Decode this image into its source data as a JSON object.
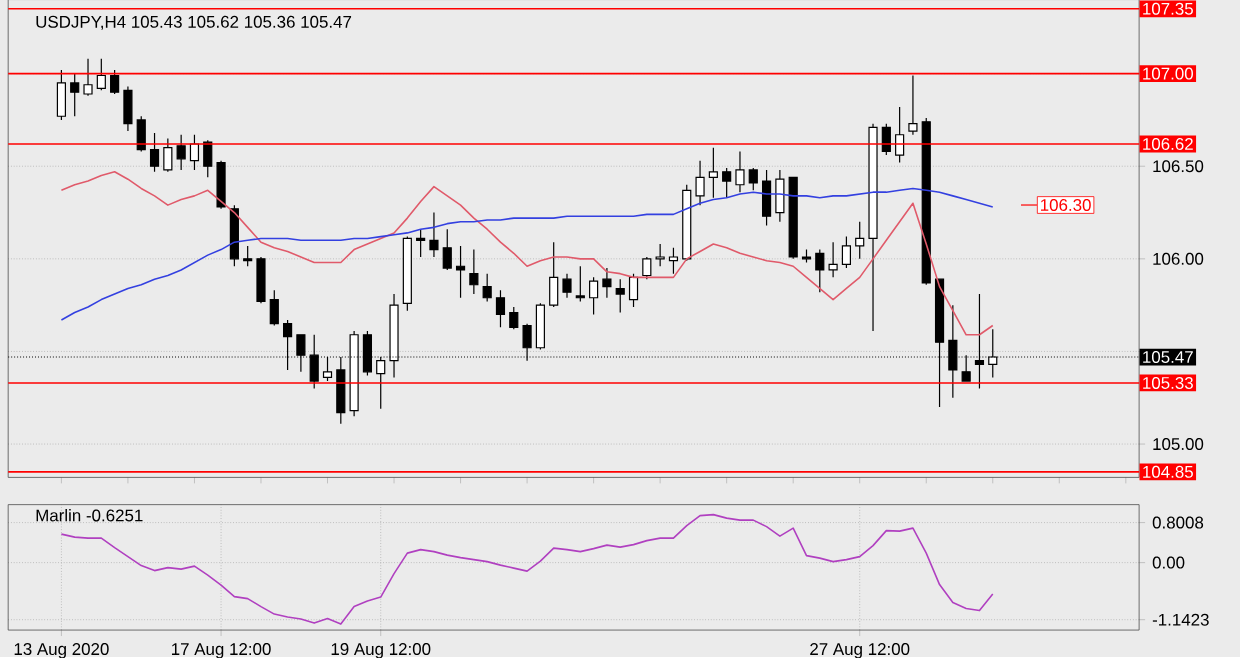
{
  "chart_data": [
    {
      "type": "candlestick",
      "title": "USDJPY,H4 105.43 105.62 105.36 105.47",
      "categories": [
        null,
        null,
        null,
        null,
        null,
        null,
        null,
        null,
        null,
        null,
        null,
        null,
        null,
        null,
        null,
        null,
        null,
        null,
        null,
        null,
        null,
        null,
        null,
        null,
        null,
        null,
        null,
        null,
        null,
        null,
        null,
        null,
        null,
        null,
        null,
        null,
        null,
        null,
        null,
        null,
        null,
        null,
        null,
        null,
        null,
        null,
        null,
        null,
        null,
        null,
        null,
        null,
        null,
        null,
        null,
        null,
        null,
        null,
        null,
        null,
        null,
        null,
        null,
        null,
        null,
        null,
        null,
        null,
        null,
        null,
        null
      ],
      "ohlc": [
        [
          106.77,
          107.02,
          106.75,
          106.95
        ],
        [
          106.95,
          107.0,
          106.77,
          106.9
        ],
        [
          106.89,
          107.08,
          106.88,
          106.94
        ],
        [
          106.92,
          107.08,
          106.91,
          106.99
        ],
        [
          106.99,
          107.02,
          106.89,
          106.9
        ],
        [
          106.91,
          106.93,
          106.69,
          106.73
        ],
        [
          106.75,
          106.77,
          106.58,
          106.59
        ],
        [
          106.59,
          106.68,
          106.47,
          106.5
        ],
        [
          106.48,
          106.65,
          106.47,
          106.6
        ],
        [
          106.61,
          106.67,
          106.48,
          106.54
        ],
        [
          106.53,
          106.67,
          106.48,
          106.62
        ],
        [
          106.63,
          106.64,
          106.44,
          106.5
        ],
        [
          106.52,
          106.53,
          106.27,
          106.28
        ],
        [
          106.27,
          106.29,
          105.96,
          106.0
        ],
        [
          106.0,
          106.07,
          105.96,
          105.99
        ],
        [
          106.0,
          106.01,
          105.76,
          105.77
        ],
        [
          105.78,
          105.83,
          105.64,
          105.65
        ],
        [
          105.65,
          105.67,
          105.4,
          105.58
        ],
        [
          105.59,
          105.59,
          105.39,
          105.48
        ],
        [
          105.48,
          105.59,
          105.3,
          105.34
        ],
        [
          105.36,
          105.47,
          105.34,
          105.39
        ],
        [
          105.4,
          105.47,
          105.11,
          105.17
        ],
        [
          105.18,
          105.61,
          105.15,
          105.59
        ],
        [
          105.59,
          105.61,
          105.37,
          105.39
        ],
        [
          105.38,
          105.47,
          105.19,
          105.45
        ],
        [
          105.45,
          105.81,
          105.36,
          105.75
        ],
        [
          105.76,
          106.12,
          105.72,
          106.11
        ],
        [
          106.11,
          106.16,
          106.01,
          106.1
        ],
        [
          106.1,
          106.25,
          106.01,
          106.05
        ],
        [
          106.06,
          106.16,
          105.94,
          105.95
        ],
        [
          105.96,
          106.07,
          105.79,
          105.94
        ],
        [
          105.92,
          106.05,
          105.81,
          105.86
        ],
        [
          105.85,
          105.92,
          105.77,
          105.79
        ],
        [
          105.79,
          105.83,
          105.63,
          105.7
        ],
        [
          105.71,
          105.74,
          105.62,
          105.63
        ],
        [
          105.64,
          105.65,
          105.45,
          105.52
        ],
        [
          105.52,
          105.76,
          105.51,
          105.75
        ],
        [
          105.75,
          106.09,
          105.74,
          105.9
        ],
        [
          105.89,
          105.92,
          105.79,
          105.82
        ],
        [
          105.8,
          105.96,
          105.77,
          105.79
        ],
        [
          105.79,
          105.9,
          105.7,
          105.88
        ],
        [
          105.89,
          105.95,
          105.79,
          105.85
        ],
        [
          105.84,
          105.89,
          105.71,
          105.81
        ],
        [
          105.78,
          105.92,
          105.74,
          105.9
        ],
        [
          105.91,
          106.01,
          105.89,
          106.0
        ],
        [
          106.0,
          106.08,
          105.96,
          106.01
        ],
        [
          105.99,
          106.06,
          105.92,
          106.01
        ],
        [
          106.0,
          106.4,
          105.99,
          106.37
        ],
        [
          106.34,
          106.53,
          106.29,
          106.44
        ],
        [
          106.44,
          106.6,
          106.33,
          106.47
        ],
        [
          106.47,
          106.49,
          106.33,
          106.42
        ],
        [
          106.4,
          106.58,
          106.36,
          106.48
        ],
        [
          106.48,
          106.49,
          106.37,
          106.41
        ],
        [
          106.42,
          106.48,
          106.18,
          106.23
        ],
        [
          106.25,
          106.48,
          106.2,
          106.43
        ],
        [
          106.44,
          106.44,
          106.0,
          106.01
        ],
        [
          106.01,
          106.05,
          105.98,
          106.0
        ],
        [
          106.03,
          106.05,
          105.82,
          105.94
        ],
        [
          105.94,
          106.09,
          105.9,
          105.97
        ],
        [
          105.97,
          106.12,
          105.95,
          106.07
        ],
        [
          106.07,
          106.2,
          106.0,
          106.11
        ],
        [
          106.11,
          106.73,
          105.61,
          106.71
        ],
        [
          106.71,
          106.73,
          106.56,
          106.58
        ],
        [
          106.56,
          106.82,
          106.52,
          106.67
        ],
        [
          106.69,
          106.99,
          106.67,
          106.73
        ],
        [
          106.74,
          106.76,
          105.86,
          105.87
        ],
        [
          105.89,
          105.89,
          105.2,
          105.55
        ],
        [
          105.56,
          105.75,
          105.25,
          105.4
        ],
        [
          105.39,
          105.48,
          105.34,
          105.34
        ],
        [
          105.45,
          105.81,
          105.3,
          105.43
        ],
        [
          105.43,
          105.62,
          105.36,
          105.47
        ]
      ],
      "series": [
        {
          "type": "line",
          "color": "#e05a6a",
          "values": [
            106.37,
            106.4,
            106.42,
            106.45,
            106.47,
            106.43,
            106.38,
            106.34,
            106.29,
            106.32,
            106.34,
            106.37,
            106.31,
            106.25,
            106.17,
            106.09,
            106.06,
            106.04,
            106.01,
            105.98,
            105.98,
            105.98,
            106.05,
            106.08,
            106.11,
            106.14,
            106.22,
            106.31,
            106.39,
            106.34,
            106.29,
            106.22,
            106.16,
            106.09,
            106.03,
            105.96,
            105.99,
            106.01,
            106.01,
            106.0,
            106.0,
            105.93,
            105.92,
            105.9,
            105.9,
            105.9,
            105.9,
            106.0,
            106.04,
            106.08,
            106.06,
            106.03,
            106.01,
            105.99,
            105.98,
            105.96,
            105.9,
            105.84,
            105.78,
            105.84,
            105.9,
            106.0,
            106.1,
            106.2,
            106.3,
            106.08,
            105.85,
            105.72,
            105.59,
            105.59,
            105.64
          ]
        },
        {
          "type": "line",
          "color": "#3340e0",
          "values": [
            105.67,
            105.71,
            105.74,
            105.78,
            105.81,
            105.84,
            105.86,
            105.89,
            105.91,
            105.94,
            105.98,
            106.02,
            106.05,
            106.09,
            106.1,
            106.11,
            106.11,
            106.11,
            106.1,
            106.1,
            106.1,
            106.1,
            106.11,
            106.11,
            106.12,
            106.13,
            106.14,
            106.16,
            106.17,
            106.19,
            106.2,
            106.2,
            106.21,
            106.21,
            106.22,
            106.22,
            106.22,
            106.22,
            106.23,
            106.23,
            106.23,
            106.23,
            106.23,
            106.23,
            106.24,
            106.24,
            106.24,
            106.27,
            106.3,
            106.32,
            106.33,
            106.35,
            106.36,
            106.35,
            106.35,
            106.34,
            106.34,
            106.33,
            106.34,
            106.34,
            106.35,
            106.36,
            106.36,
            106.37,
            106.38,
            106.37,
            106.36,
            106.34,
            106.32,
            106.3,
            106.28
          ]
        }
      ],
      "ylim": [
        104.82,
        107.4
      ],
      "yticks": [
        {
          "value": 105,
          "label": "105.00"
        },
        {
          "value": 105.5,
          "label": null
        },
        {
          "value": 106,
          "label": "106.00"
        },
        {
          "value": 106.5,
          "label": "106.50"
        },
        {
          "value": 107,
          "label": null
        }
      ],
      "grid": "y",
      "ref_lines": [
        {
          "axis": "y",
          "value": 107.35,
          "label": "107.35",
          "color": "#ff0000"
        },
        {
          "axis": "y",
          "value": 107.0,
          "label": "107.00",
          "color": "#ff0000"
        },
        {
          "axis": "y",
          "value": 106.62,
          "label": "106.62",
          "color": "#ff0000"
        },
        {
          "axis": "y",
          "value": 105.47,
          "label": "105.47",
          "color": "#000000",
          "line_style": "dotted"
        },
        {
          "axis": "y",
          "value": 105.33,
          "label": "105.33",
          "color": "#ff0000"
        },
        {
          "axis": "y",
          "value": 104.85,
          "label": "104.85",
          "color": "#ff0000"
        }
      ],
      "annotations": [
        "106.30"
      ]
    },
    {
      "type": "line",
      "title": "Marlin -0.6251",
      "categories": [
        "13 Aug 2020",
        null,
        null,
        null,
        null,
        null,
        null,
        null,
        null,
        null,
        null,
        null,
        "17 Aug 12:00",
        null,
        null,
        null,
        null,
        null,
        null,
        null,
        null,
        null,
        null,
        null,
        "19 Aug 12:00",
        null,
        null,
        null,
        null,
        null,
        null,
        null,
        null,
        null,
        null,
        null,
        null,
        null,
        null,
        null,
        null,
        null,
        null,
        null,
        null,
        null,
        null,
        null,
        null,
        null,
        null,
        null,
        null,
        null,
        null,
        null,
        null,
        null,
        null,
        null,
        "27 Aug 12:00",
        null,
        null,
        null,
        null,
        null,
        null,
        null,
        null,
        null,
        null
      ],
      "series": [
        {
          "color": "#b040c0",
          "values": [
            0.57,
            0.51,
            0.49,
            0.49,
            0.3,
            0.12,
            -0.06,
            -0.16,
            -0.1,
            -0.13,
            -0.07,
            -0.25,
            -0.45,
            -0.68,
            -0.72,
            -0.88,
            -1.03,
            -1.09,
            -1.13,
            -1.21,
            -1.12,
            -1.23,
            -0.88,
            -0.77,
            -0.69,
            -0.22,
            0.19,
            0.26,
            0.22,
            0.15,
            0.1,
            0.06,
            0.02,
            -0.05,
            -0.11,
            -0.17,
            0.03,
            0.29,
            0.26,
            0.22,
            0.28,
            0.35,
            0.31,
            0.36,
            0.44,
            0.49,
            0.49,
            0.74,
            0.94,
            0.96,
            0.89,
            0.85,
            0.85,
            0.72,
            0.53,
            0.69,
            0.14,
            0.09,
            0.02,
            0.06,
            0.12,
            0.34,
            0.64,
            0.63,
            0.69,
            0.19,
            -0.44,
            -0.8,
            -0.92,
            -0.96,
            -0.63
          ]
        }
      ],
      "ylim": [
        -1.35,
        1.16
      ],
      "yticks": [
        {
          "value": -1.1423,
          "label": "-1.1423"
        },
        {
          "value": 0,
          "label": "0.00"
        },
        {
          "value": 0.8008,
          "label": "0.8008"
        }
      ],
      "grid": true
    }
  ]
}
